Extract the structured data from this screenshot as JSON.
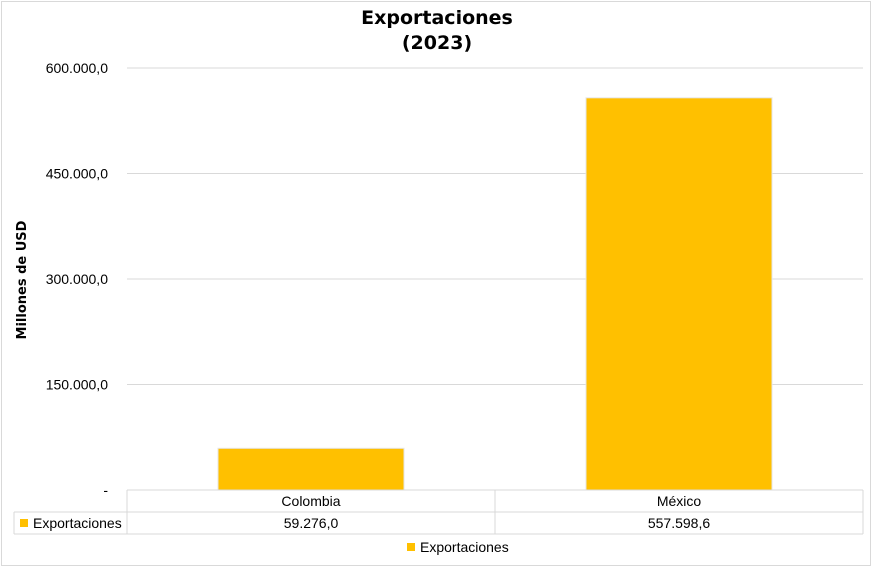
{
  "chart_data": {
    "type": "bar",
    "title": "Exportaciones",
    "subtitle": "(2023)",
    "ylabel": "Millones de USD",
    "xlabel": "",
    "categories": [
      "Colombia",
      "México"
    ],
    "series": [
      {
        "name": "Exportaciones",
        "values": [
          59276.0,
          557598.6
        ],
        "color": "#FFC000"
      }
    ],
    "data_table": {
      "row_label": "Exportaciones",
      "cells": [
        "59.276,0",
        "557.598,6"
      ]
    },
    "ylim": [
      0,
      600000
    ],
    "yticks": [
      {
        "value": 0,
        "label": "-"
      },
      {
        "value": 150000,
        "label": "150.000,0"
      },
      {
        "value": 300000,
        "label": "300.000,0"
      },
      {
        "value": 450000,
        "label": "450.000,0"
      },
      {
        "value": 600000,
        "label": "600.000,0"
      }
    ],
    "grid": true,
    "legend": {
      "position": "bottom",
      "entries": [
        "Exportaciones"
      ]
    },
    "colors": {
      "bar": "#FFC000",
      "grid": "#d9d9d9"
    }
  }
}
